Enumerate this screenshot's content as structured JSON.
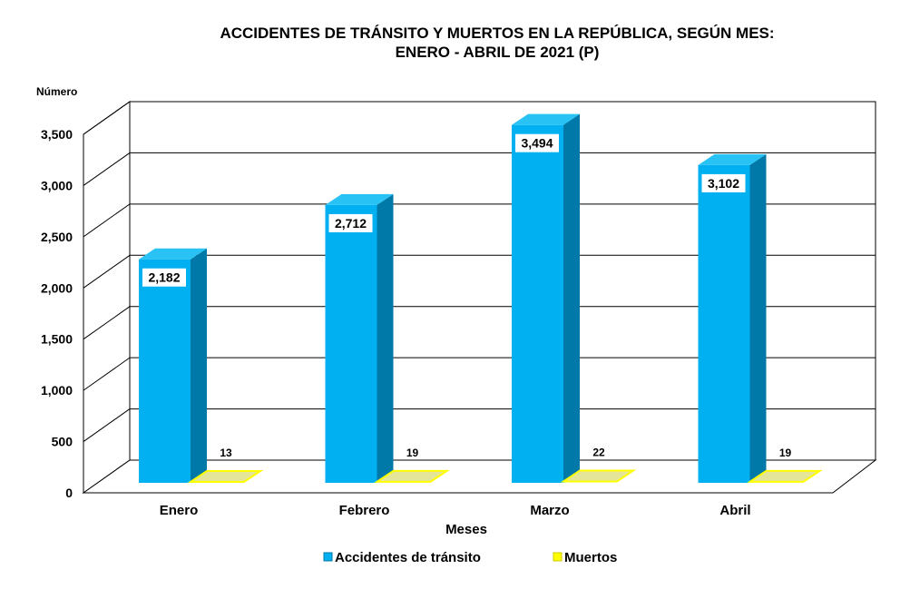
{
  "chart_data": {
    "type": "bar",
    "title_line1": "ACCIDENTES DE TRÁNSITO Y MUERTOS EN LA REPÚBLICA, SEGÚN MES:",
    "title_line2": "ENERO - ABRIL  DE  2021 (P)",
    "ylabel": "Número",
    "xlabel": "Meses",
    "categories": [
      "Enero",
      "Febrero",
      "Marzo",
      "Abril"
    ],
    "series": [
      {
        "name": "Accidentes de tránsito",
        "values": [
          2182,
          2712,
          3494,
          3102
        ],
        "labels": [
          "2,182",
          "2,712",
          "3,494",
          "3,102"
        ],
        "color": "#00B0F0",
        "side_color": "#0079A8",
        "top_color": "#29C2F5"
      },
      {
        "name": "Muertos",
        "values": [
          13,
          19,
          22,
          19
        ],
        "labels": [
          "13",
          "19",
          "22",
          "19"
        ],
        "color": "#FFFF00",
        "top_color": "#E5E59A"
      }
    ],
    "ylim": [
      0,
      3500
    ],
    "yticks": [
      0,
      500,
      1000,
      1500,
      2000,
      2500,
      3000,
      3500
    ],
    "ytick_labels": [
      "0",
      "500",
      "1,000",
      "1,500",
      "2,000",
      "2,500",
      "3,000",
      "3,500"
    ],
    "grid": true,
    "legend_position": "bottom"
  }
}
